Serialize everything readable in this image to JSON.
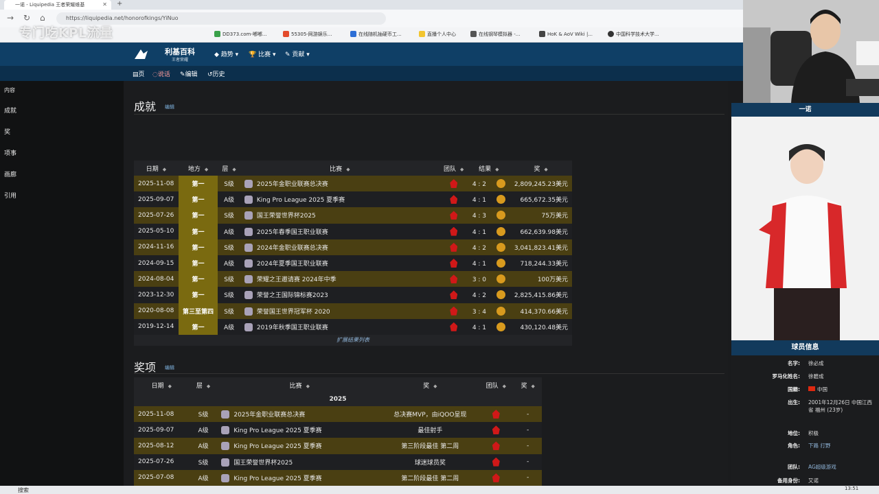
{
  "browser": {
    "tab_title": "一诺 - Liquipedia 王者荣耀维基",
    "url": "https://liquipedia.net/honorofkings/YiNuo",
    "bookmarks": [
      "DD373.com-嘟嘟...",
      "55305-网游娱乐...",
      "在线随机抽硬币工...",
      "直播个人中心",
      "在线钢琴模拟器 -...",
      "HoK & AoV Wiki |...",
      "中国科学技术大学..."
    ],
    "watermark": "专门吃KPL流量"
  },
  "site": {
    "name": "利基百科",
    "sub": "王者荣耀",
    "nav": [
      "趋势",
      "比赛",
      "贡献"
    ],
    "subnav": [
      "页",
      "说话",
      "编辑",
      "历史"
    ]
  },
  "sidebar": {
    "items": [
      "内容",
      "成就",
      "奖",
      "项事",
      "画廊",
      "引用"
    ]
  },
  "achievements": {
    "heading": "成就",
    "edit": "编辑",
    "headers": [
      "日期",
      "地方",
      "层",
      "比赛",
      "团队",
      "结果",
      "奖"
    ],
    "rows": [
      {
        "date": "2025-11-08",
        "place": "第一",
        "tier": "S级",
        "event": "2025年金职业联赛总决赛",
        "score": "4 : 2",
        "prize": "2,809,245.23美元"
      },
      {
        "date": "2025-09-07",
        "place": "第一",
        "tier": "A级",
        "event": "King Pro League 2025 夏季赛",
        "score": "4 : 1",
        "prize": "665,672.35美元"
      },
      {
        "date": "2025-07-26",
        "place": "第一",
        "tier": "S级",
        "event": "国王荣誉世界杯2025",
        "score": "4 : 3",
        "prize": "75万美元"
      },
      {
        "date": "2025-05-10",
        "place": "第一",
        "tier": "A级",
        "event": "2025年春季国王职业联赛",
        "score": "4 : 1",
        "prize": "662,639.98美元"
      },
      {
        "date": "2024-11-16",
        "place": "第一",
        "tier": "S级",
        "event": "2024年金职业联赛总决赛",
        "score": "4 : 2",
        "prize": "3,041,823.41美元"
      },
      {
        "date": "2024-09-15",
        "place": "第一",
        "tier": "A级",
        "event": "2024年夏季国王职业联赛",
        "score": "4 : 1",
        "prize": "718,244.33美元"
      },
      {
        "date": "2024-08-04",
        "place": "第一",
        "tier": "S级",
        "event": "荣耀之王邀请赛 2024年中季",
        "score": "3 : 0",
        "prize": "100万美元"
      },
      {
        "date": "2023-12-30",
        "place": "第一",
        "tier": "S级",
        "event": "荣誉之王国际锦标赛2023",
        "score": "4 : 2",
        "prize": "2,825,415.86美元"
      },
      {
        "date": "2020-08-08",
        "place": "第三至第四",
        "tier": "S级",
        "event": "荣誉国王世界冠军杯 2020",
        "score": "3 : 4",
        "prize": "414,370.66美元"
      },
      {
        "date": "2019-12-14",
        "place": "第一",
        "tier": "A级",
        "event": "2019年秋季国王职业联赛",
        "score": "4 : 1",
        "prize": "430,120.48美元"
      }
    ],
    "expand": "扩展结果列表"
  },
  "awards": {
    "heading": "奖项",
    "edit": "编辑",
    "headers": [
      "日期",
      "层",
      "比赛",
      "奖",
      "团队",
      "奖"
    ],
    "year": "2025",
    "rows": [
      {
        "date": "2025-11-08",
        "tier": "S级",
        "event": "2025年金职业联赛总决赛",
        "award": "总决赛MVP，由iQOO呈现",
        "prize": "-"
      },
      {
        "date": "2025-09-07",
        "tier": "A级",
        "event": "King Pro League 2025 夏季赛",
        "award": "最佳射手",
        "prize": "-"
      },
      {
        "date": "2025-08-12",
        "tier": "A级",
        "event": "King Pro League 2025 夏季赛",
        "award": "第三阶段最佳 第二周",
        "prize": "-"
      },
      {
        "date": "2025-07-26",
        "tier": "S级",
        "event": "国王荣誉世界杯2025",
        "award": "球迷球员奖",
        "prize": "-"
      },
      {
        "date": "2025-07-08",
        "tier": "A级",
        "event": "King Pro League 2025 夏季赛",
        "award": "第二阶段最佳 第二周",
        "prize": "-"
      }
    ]
  },
  "right": {
    "cam_name": "一诺",
    "info_title": "球员信息",
    "info": [
      {
        "k": "名字:",
        "v": "徐必成"
      },
      {
        "k": "罗马化姓名:",
        "v": "徐碧成"
      },
      {
        "k": "国籍:",
        "v": "中国"
      },
      {
        "k": "出生:",
        "v": "2001年12月26日 中国江西省 福州 (23岁)"
      },
      {
        "k": "地位:",
        "v": "积极"
      },
      {
        "k": "角色:",
        "v": "下路 打野"
      },
      {
        "k": "团队:",
        "v": "AG超级游戏"
      },
      {
        "k": "备用身份:",
        "v": "又诺"
      }
    ]
  },
  "taskbar": {
    "search": "搜索",
    "time": "13:51"
  },
  "colors": {
    "header": "#0f3f66",
    "gold_row": "#4a3f12",
    "place_cell": "#7a6a10",
    "team_red": "#d01818"
  }
}
